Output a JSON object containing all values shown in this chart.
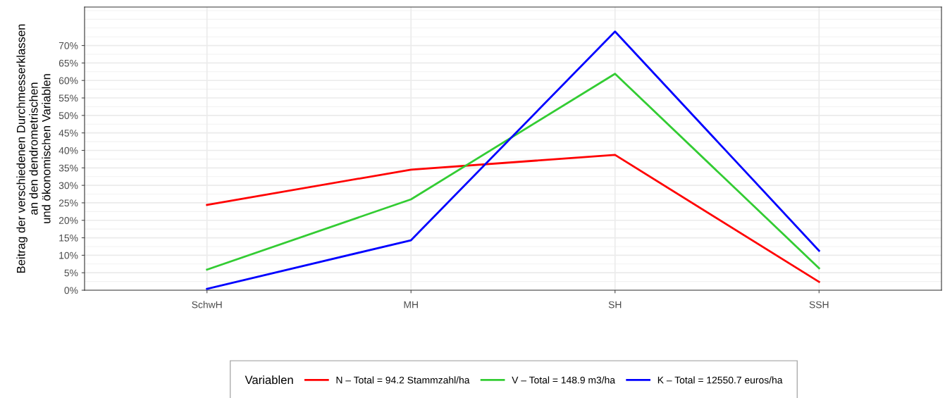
{
  "chart_data": {
    "type": "line",
    "ylabel": "Beitrag der verschiedenen Durchmesserklassen\nan den dendrometrischen\nund ökonomischen Variablen",
    "categories": [
      "SchwH",
      "MH",
      "SH",
      "SSH"
    ],
    "series": [
      {
        "name": "N – Total = 94.2 Stammzahl/ha",
        "color": "#ff0000",
        "values": [
          24.4,
          34.5,
          38.7,
          2.4
        ]
      },
      {
        "name": "V – Total = 148.9 m3/ha",
        "color": "#33cc33",
        "values": [
          5.9,
          26.0,
          61.9,
          6.3
        ]
      },
      {
        "name": "K – Total = 12550.7 euros/ha",
        "color": "#0000ff",
        "values": [
          0.4,
          14.3,
          74.0,
          11.3
        ]
      }
    ],
    "legend_title": "Variablen",
    "legend": "bottom",
    "ylim": [
      0,
      81
    ],
    "yticks": [
      {
        "value": 0,
        "label": "0%"
      },
      {
        "value": 5,
        "label": "5%"
      },
      {
        "value": 10,
        "label": "10%"
      },
      {
        "value": 15,
        "label": "15%"
      },
      {
        "value": 20,
        "label": "20%"
      },
      {
        "value": 25,
        "label": "25%"
      },
      {
        "value": 30,
        "label": "30%"
      },
      {
        "value": 35,
        "label": "35%"
      },
      {
        "value": 40,
        "label": "40%"
      },
      {
        "value": 45,
        "label": "45%"
      },
      {
        "value": 50,
        "label": "50%"
      },
      {
        "value": 55,
        "label": "55%"
      },
      {
        "value": 60,
        "label": "60%"
      },
      {
        "value": 65,
        "label": "65%"
      },
      {
        "value": 70,
        "label": "70%"
      }
    ],
    "grid": true,
    "line_style": "solid"
  }
}
